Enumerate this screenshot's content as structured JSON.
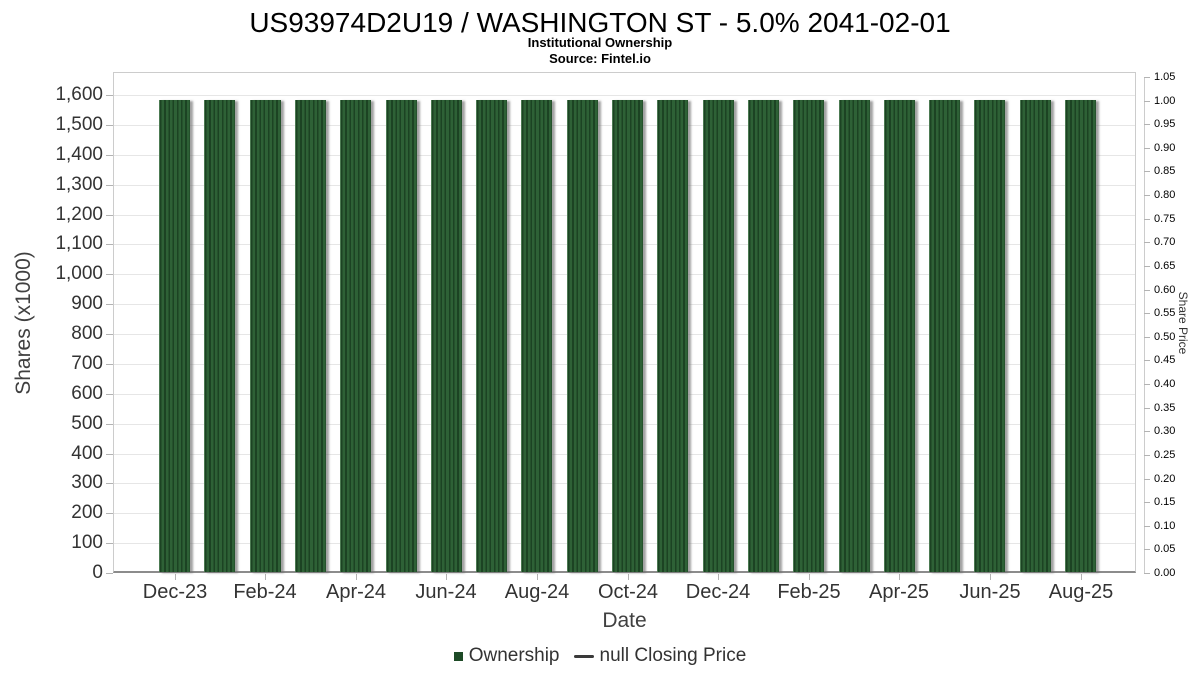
{
  "chart_data": {
    "type": "bar",
    "title": "US93974D2U19 / WASHINGTON ST - 5.0% 2041-02-01",
    "subtitle": "Institutional Ownership",
    "source": "Source: Fintel.io",
    "xlabel": "Date",
    "ylabel_left": "Shares (x1000)",
    "ylabel_right": "Share Price",
    "categories": [
      "Dec-23",
      "Jan-24",
      "Feb-24",
      "Mar-24",
      "Apr-24",
      "May-24",
      "Jun-24",
      "Jul-24",
      "Aug-24",
      "Sep-24",
      "Oct-24",
      "Nov-24",
      "Dec-24",
      "Jan-25",
      "Feb-25",
      "Mar-25",
      "Apr-25",
      "May-25",
      "Jun-25",
      "Jul-25",
      "Aug-25"
    ],
    "x_tick_labels": [
      "Dec-23",
      "Feb-24",
      "Apr-24",
      "Jun-24",
      "Aug-24",
      "Oct-24",
      "Dec-24",
      "Feb-25",
      "Apr-25",
      "Jun-25",
      "Aug-25"
    ],
    "series": [
      {
        "name": "Ownership",
        "type": "bar",
        "color": "#2e6136",
        "values": [
          1580,
          1580,
          1580,
          1580,
          1580,
          1580,
          1580,
          1580,
          1580,
          1580,
          1580,
          1580,
          1580,
          1580,
          1580,
          1580,
          1580,
          1580,
          1580,
          1580,
          1580
        ]
      },
      {
        "name": "null Closing Price",
        "type": "line",
        "color": "#3a3a3a",
        "values": []
      }
    ],
    "ylim_left": [
      0,
      1677
    ],
    "yticks_left_values": [
      0,
      100,
      200,
      300,
      400,
      500,
      600,
      700,
      800,
      900,
      1000,
      1100,
      1200,
      1300,
      1400,
      1500,
      1600
    ],
    "yticks_left_labels": [
      "0",
      "100",
      "200",
      "300",
      "400",
      "500",
      "600",
      "700",
      "800",
      "900",
      "1,000",
      "1,100",
      "1,200",
      "1,300",
      "1,400",
      "1,500",
      "1,600"
    ],
    "ylim_right": [
      0,
      1.0606
    ],
    "yticks_right_values": [
      0,
      0.05,
      0.1,
      0.15,
      0.2,
      0.25,
      0.3,
      0.35,
      0.4,
      0.45,
      0.5,
      0.55,
      0.6,
      0.65,
      0.7,
      0.75,
      0.8,
      0.85,
      0.9,
      0.95,
      1,
      1.05
    ],
    "yticks_right_labels": [
      "0.00",
      "0.05",
      "0.10",
      "0.15",
      "0.20",
      "0.25",
      "0.30",
      "0.35",
      "0.40",
      "0.45",
      "0.50",
      "0.55",
      "0.60",
      "0.65",
      "0.70",
      "0.75",
      "0.80",
      "0.85",
      "0.90",
      "0.95",
      "1.00",
      "1.05"
    ],
    "grid": true,
    "legend_position": "bottom",
    "colors": {
      "bar_fill": "#2e6136",
      "bar_hatch": "#1c4323",
      "legend_square": "#1d4a26",
      "gridline": "#e6e6e6",
      "axis_border": "#cccccc",
      "axis_bottom": "#8c8c8c",
      "tick_text": "#333333"
    }
  }
}
